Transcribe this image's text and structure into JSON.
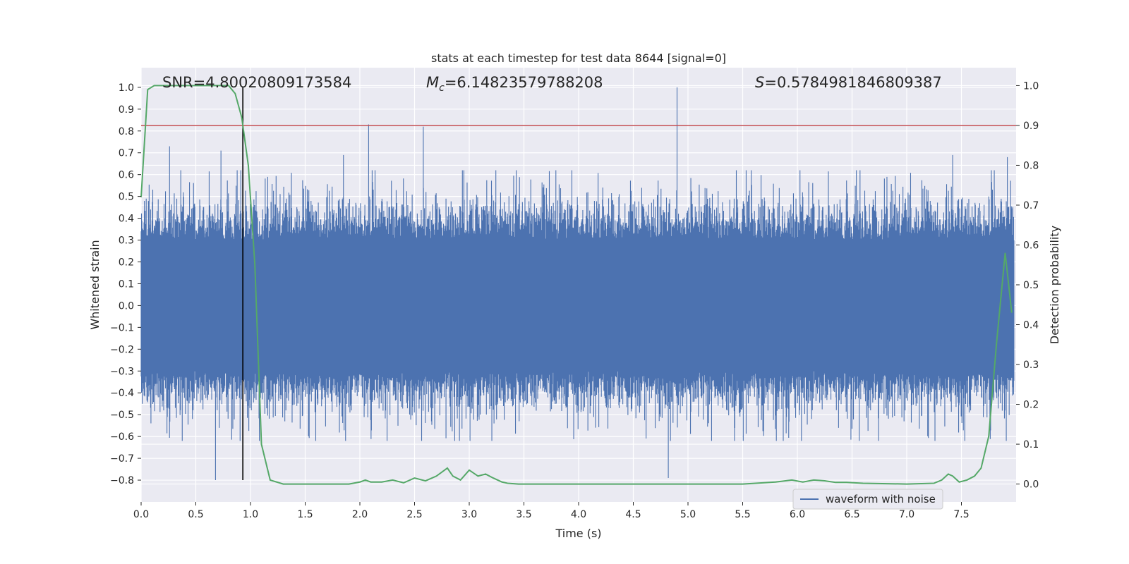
{
  "chart_data": {
    "type": "line",
    "title": "stats at each timestep for test data 8644 [signal=0]",
    "xlabel": "Time (s)",
    "ylabel_left": "Whitened strain",
    "ylabel_right": "Detection probability",
    "xlim": [
      0.0,
      8.0
    ],
    "ylim_left": [
      -0.9,
      1.09
    ],
    "ylim_right": [
      -0.045,
      1.045
    ],
    "x_ticks": [
      "0.0",
      "0.5",
      "1.0",
      "1.5",
      "2.0",
      "2.5",
      "3.0",
      "3.5",
      "4.0",
      "4.5",
      "5.0",
      "5.5",
      "6.0",
      "6.5",
      "7.0",
      "7.5"
    ],
    "y_ticks_left": [
      "1.0",
      "0.9",
      "0.8",
      "0.7",
      "0.6",
      "0.5",
      "0.4",
      "0.3",
      "0.2",
      "0.1",
      "0.0",
      "−0.1",
      "−0.2",
      "−0.3",
      "−0.4",
      "−0.5",
      "−0.6",
      "−0.7",
      "−0.8"
    ],
    "y_ticks_right": [
      "1.0",
      "0.9",
      "0.8",
      "0.7",
      "0.6",
      "0.5",
      "0.4",
      "0.3",
      "0.2",
      "0.1",
      "0.0"
    ],
    "annotations": {
      "snr": "SNR=4.80020809173584",
      "mc_symbol": "M",
      "mc_sub": "c",
      "mc_value": "=6.14823579788208",
      "s_symbol": "S",
      "s_value": "=0.5784981846809387"
    },
    "threshold_right": 0.9,
    "peak_marker_x": 0.93,
    "grid": true,
    "legend_position": "lower-right",
    "series": [
      {
        "name": "waveform with noise",
        "axis": "left",
        "color": "#4c72b0",
        "envelope_typical": 0.3,
        "notable_peaks": [
          {
            "x": 0.26,
            "y": 0.73
          },
          {
            "x": 0.73,
            "y": 0.71
          },
          {
            "x": 1.85,
            "y": 0.69
          },
          {
            "x": 2.08,
            "y": 0.83
          },
          {
            "x": 2.58,
            "y": 0.82
          },
          {
            "x": 4.9,
            "y": 1.0
          },
          {
            "x": 4.82,
            "y": -0.79
          },
          {
            "x": 0.68,
            "y": -0.8
          },
          {
            "x": 7.42,
            "y": 0.69
          },
          {
            "x": 7.92,
            "y": 0.68
          }
        ]
      },
      {
        "name": "",
        "axis": "right",
        "color": "#55a868",
        "x": [
          0.0,
          0.06,
          0.12,
          0.2,
          0.3,
          0.4,
          0.5,
          0.6,
          0.7,
          0.8,
          0.86,
          0.92,
          0.98,
          1.04,
          1.1,
          1.18,
          1.3,
          1.5,
          1.7,
          1.9,
          2.0,
          2.05,
          2.1,
          2.2,
          2.3,
          2.4,
          2.5,
          2.6,
          2.7,
          2.8,
          2.85,
          2.92,
          3.0,
          3.08,
          3.15,
          3.22,
          3.3,
          3.35,
          3.45,
          3.7,
          4.0,
          4.3,
          4.6,
          4.9,
          5.2,
          5.5,
          5.8,
          5.95,
          6.05,
          6.15,
          6.25,
          6.35,
          6.45,
          6.6,
          7.0,
          7.25,
          7.32,
          7.38,
          7.42,
          7.48,
          7.55,
          7.62,
          7.68,
          7.75,
          7.82,
          7.9,
          7.96
        ],
        "y": [
          0.72,
          0.99,
          1.0,
          1.0,
          1.0,
          1.0,
          1.0,
          1.0,
          1.0,
          1.0,
          0.98,
          0.92,
          0.8,
          0.55,
          0.1,
          0.01,
          0.0,
          0.0,
          0.0,
          0.0,
          0.005,
          0.01,
          0.005,
          0.005,
          0.01,
          0.003,
          0.015,
          0.008,
          0.02,
          0.04,
          0.02,
          0.01,
          0.035,
          0.02,
          0.025,
          0.015,
          0.005,
          0.002,
          0.0,
          0.0,
          0.0,
          0.0,
          0.0,
          0.0,
          0.0,
          0.0,
          0.005,
          0.01,
          0.005,
          0.01,
          0.008,
          0.004,
          0.004,
          0.002,
          0.0,
          0.002,
          0.01,
          0.025,
          0.02,
          0.005,
          0.01,
          0.02,
          0.04,
          0.12,
          0.35,
          0.58,
          0.43
        ]
      }
    ]
  }
}
